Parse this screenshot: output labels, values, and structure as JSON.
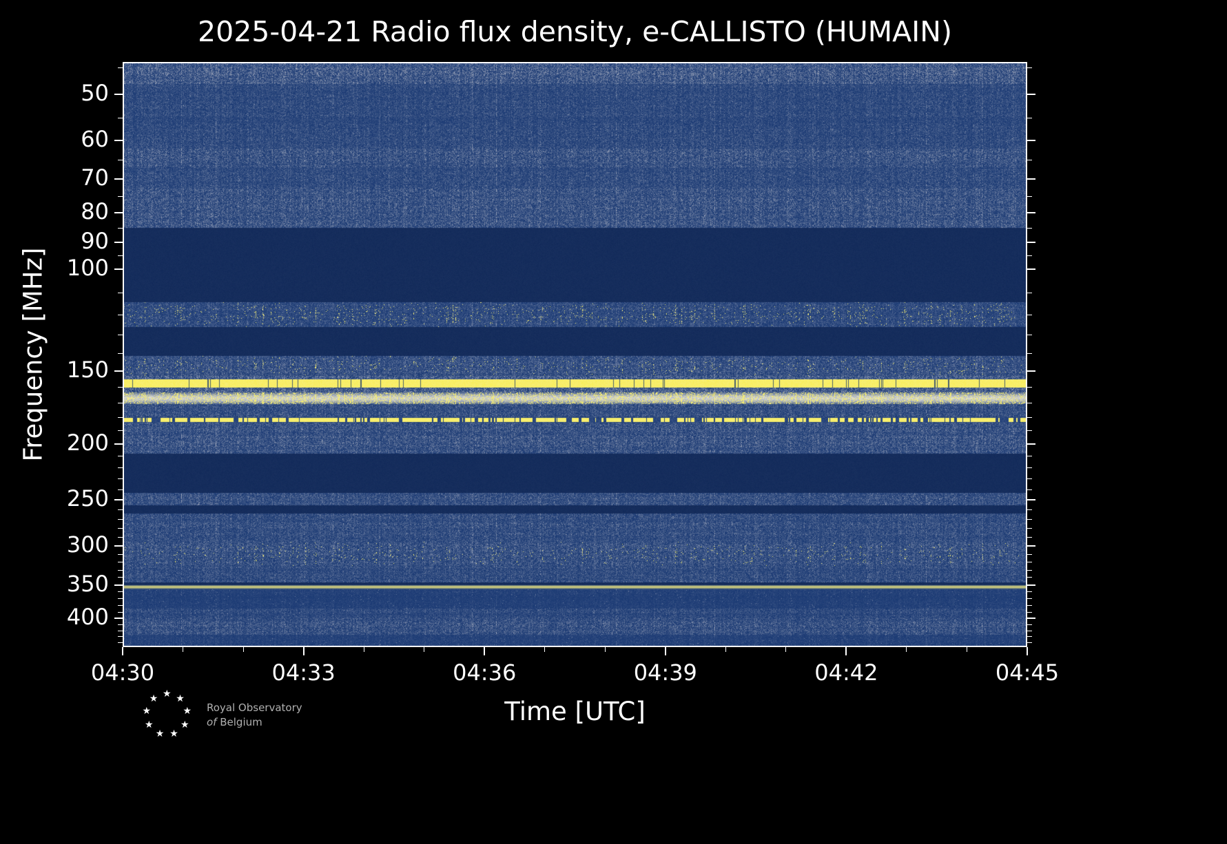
{
  "chart_data": {
    "type": "heatmap",
    "title": "2025-04-21 Radio flux density, e-CALLISTO (HUMAIN)",
    "xlabel": "Time [UTC]",
    "ylabel": "Frequency [MHz]",
    "x_range_min": [
      0,
      15
    ],
    "x_ticks": [
      {
        "label": "04:30",
        "t": 0
      },
      {
        "label": "04:33",
        "t": 3
      },
      {
        "label": "04:36",
        "t": 6
      },
      {
        "label": "04:39",
        "t": 9
      },
      {
        "label": "04:42",
        "t": 12
      },
      {
        "label": "04:45",
        "t": 15
      }
    ],
    "x_minor_ticks_min": [
      1,
      2,
      4,
      5,
      7,
      8,
      10,
      11,
      13,
      14
    ],
    "y_scale": "log",
    "y_range_mhz": [
      44,
      448
    ],
    "y_ticks_mhz": [
      50,
      60,
      70,
      80,
      90,
      100,
      150,
      200,
      250,
      300,
      350,
      400
    ],
    "y_minor_ticks_mhz": [
      45,
      55,
      65,
      75,
      85,
      95,
      110,
      120,
      130,
      140,
      160,
      170,
      180,
      190,
      210,
      220,
      230,
      240,
      260,
      270,
      280,
      290,
      310,
      320,
      330,
      340,
      360,
      370,
      380,
      390,
      410,
      420,
      430,
      440
    ],
    "legend": "none",
    "grid": false,
    "colors": {
      "background": "#000000",
      "axis": "#ffffff",
      "deep_blue": "#1b3a74",
      "flat_blue": "#122a5a",
      "noise_grey": "#9aa3b8",
      "yellow": "#f9ee4e",
      "white_hot": "#f4f1dc"
    },
    "bands": [
      {
        "f0": 44,
        "f1": 48,
        "kind": "noise",
        "level": 0.55
      },
      {
        "f0": 48,
        "f1": 62,
        "kind": "noise",
        "level": 0.3
      },
      {
        "f0": 62,
        "f1": 67,
        "kind": "noise",
        "level": 0.45
      },
      {
        "f0": 67,
        "f1": 73,
        "kind": "noise",
        "level": 0.32
      },
      {
        "f0": 73,
        "f1": 85,
        "kind": "noise",
        "level": 0.45
      },
      {
        "f0": 85,
        "f1": 114,
        "kind": "flat"
      },
      {
        "f0": 114,
        "f1": 126,
        "kind": "speckle",
        "level": 0.3,
        "speckle": 0.05
      },
      {
        "f0": 126,
        "f1": 141,
        "kind": "flat"
      },
      {
        "f0": 141,
        "f1": 153,
        "kind": "speckle",
        "level": 0.42,
        "speckle": 0.035
      },
      {
        "f0": 153,
        "f1": 155,
        "kind": "noise",
        "level": 0.55
      },
      {
        "f0": 155,
        "f1": 160,
        "kind": "line"
      },
      {
        "f0": 160,
        "f1": 163,
        "kind": "noise",
        "level": 0.6
      },
      {
        "f0": 163,
        "f1": 171,
        "kind": "hotband",
        "speckle": 0.3
      },
      {
        "f0": 171,
        "f1": 180,
        "kind": "noise",
        "level": 0.38
      },
      {
        "f0": 180,
        "f1": 184,
        "kind": "dashline"
      },
      {
        "f0": 184,
        "f1": 208,
        "kind": "noise",
        "level": 0.45
      },
      {
        "f0": 208,
        "f1": 243,
        "kind": "flat"
      },
      {
        "f0": 243,
        "f1": 255,
        "kind": "noise",
        "level": 0.4
      },
      {
        "f0": 255,
        "f1": 264,
        "kind": "flat"
      },
      {
        "f0": 264,
        "f1": 295,
        "kind": "noise",
        "level": 0.35
      },
      {
        "f0": 295,
        "f1": 325,
        "kind": "speckle",
        "level": 0.4,
        "speckle": 0.03
      },
      {
        "f0": 325,
        "f1": 347,
        "kind": "noise",
        "level": 0.33
      },
      {
        "f0": 347,
        "f1": 350,
        "kind": "flat"
      },
      {
        "f0": 350,
        "f1": 356,
        "kind": "thinline"
      },
      {
        "f0": 356,
        "f1": 385,
        "kind": "noise",
        "level": 0.12
      },
      {
        "f0": 385,
        "f1": 400,
        "kind": "noise",
        "level": 0.26
      },
      {
        "f0": 400,
        "f1": 426,
        "kind": "noise",
        "level": 0.38
      },
      {
        "f0": 426,
        "f1": 448,
        "kind": "noise",
        "level": 0.16
      }
    ]
  },
  "logo": {
    "star_glyph": "★",
    "star_count": 9,
    "line1": "Royal Observatory",
    "line2_italic": "of",
    "line2_rest": "Belgium"
  }
}
